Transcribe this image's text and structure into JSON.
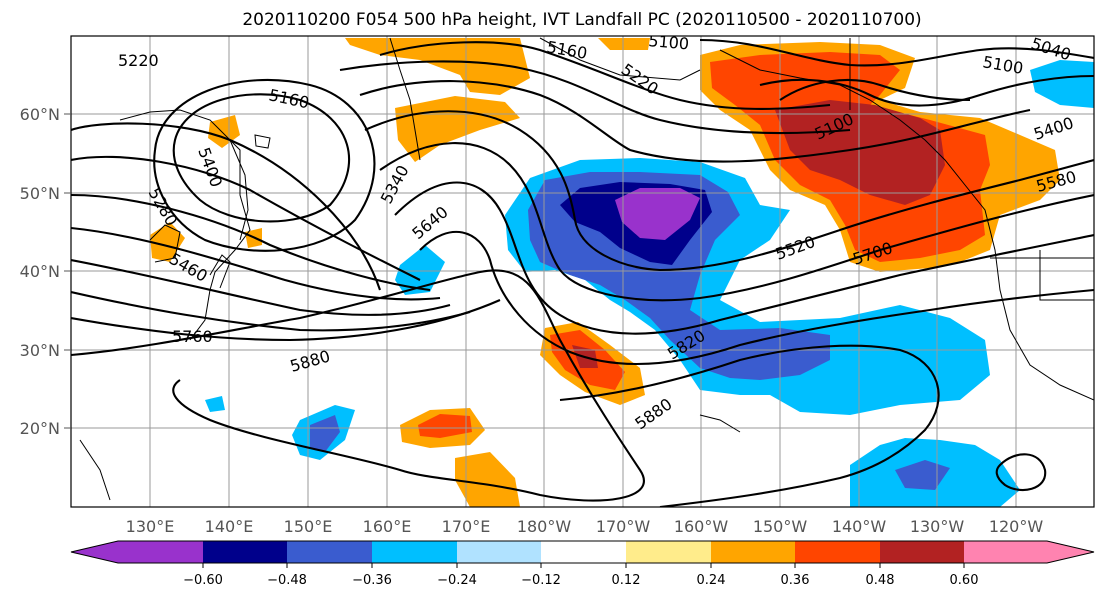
{
  "title": "2020110200 F054 500 hPa height, IVT Landfall PC (2020110500 - 2020110700)",
  "lat_labels": [
    "60°N",
    "50°N",
    "40°N",
    "30°N",
    "20°N"
  ],
  "lon_labels": [
    "130°E",
    "140°E",
    "150°E",
    "160°E",
    "170°E",
    "180°W",
    "170°W",
    "160°W",
    "150°W",
    "140°W",
    "130°W",
    "120°W"
  ],
  "height_contour_labels": [
    "5220",
    "5160",
    "5400",
    "5340",
    "5280",
    "5460",
    "5640",
    "5760",
    "5880",
    "5160",
    "5100",
    "5220",
    "5100",
    "5040",
    "5100",
    "5400",
    "5580",
    "5520",
    "5700",
    "5820",
    "5880"
  ],
  "colorbar": {
    "colors": [
      "#9932cc",
      "#00008b",
      "#3a5ccf",
      "#00bfff",
      "#b0e2ff",
      "#ffffff",
      "#ffec8b",
      "#ffa500",
      "#ff4500",
      "#b22222",
      "#ff83b0"
    ],
    "tick_labels": [
      "−0.60",
      "−0.48",
      "−0.36",
      "−0.24",
      "−0.12",
      "0.12",
      "0.24",
      "0.36",
      "0.48",
      "0.60"
    ]
  }
}
